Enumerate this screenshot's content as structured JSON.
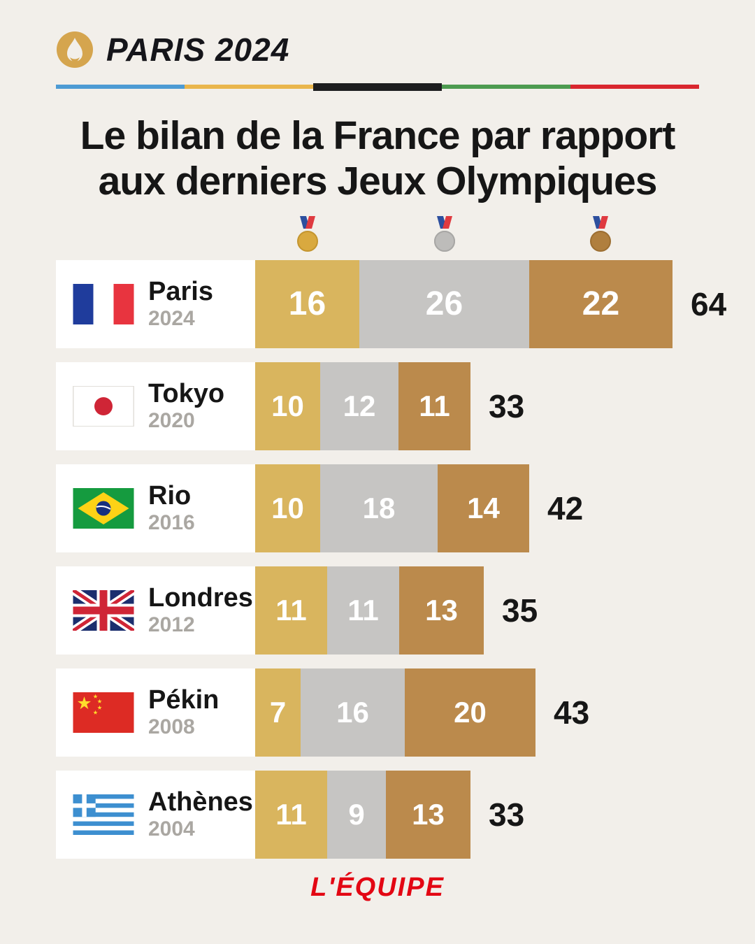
{
  "header": {
    "brand": "PARIS 2024",
    "stripe_colors": [
      "#4d9bd4",
      "#e9b64c",
      "#1d1d1f",
      "#4d9b50",
      "#d9262e"
    ]
  },
  "title": {
    "line1": "Le bilan de la France par rapport",
    "line2": "aux derniers Jeux Olympiques"
  },
  "chart_data": {
    "type": "bar",
    "stacked": true,
    "orientation": "horizontal",
    "series_names": [
      "gold",
      "silver",
      "bronze"
    ],
    "colors": {
      "gold": "#d9b55e",
      "silver": "#c6c5c3",
      "bronze": "#bb8a4c"
    },
    "max_total": 64,
    "rows": [
      {
        "city": "Paris",
        "year": "2024",
        "flag": "france",
        "gold": 16,
        "silver": 26,
        "bronze": 22,
        "total": 64
      },
      {
        "city": "Tokyo",
        "year": "2020",
        "flag": "japan",
        "gold": 10,
        "silver": 12,
        "bronze": 11,
        "total": 33
      },
      {
        "city": "Rio",
        "year": "2016",
        "flag": "brazil",
        "gold": 10,
        "silver": 18,
        "bronze": 14,
        "total": 42
      },
      {
        "city": "Londres",
        "year": "2012",
        "flag": "uk",
        "gold": 11,
        "silver": 11,
        "bronze": 13,
        "total": 35
      },
      {
        "city": "Pékin",
        "year": "2008",
        "flag": "china",
        "gold": 7,
        "silver": 16,
        "bronze": 20,
        "total": 43
      },
      {
        "city": "Athènes",
        "year": "2004",
        "flag": "greece",
        "gold": 11,
        "silver": 9,
        "bronze": 13,
        "total": 33
      }
    ]
  },
  "footer": {
    "logo": "L'ÉQUIPE"
  }
}
